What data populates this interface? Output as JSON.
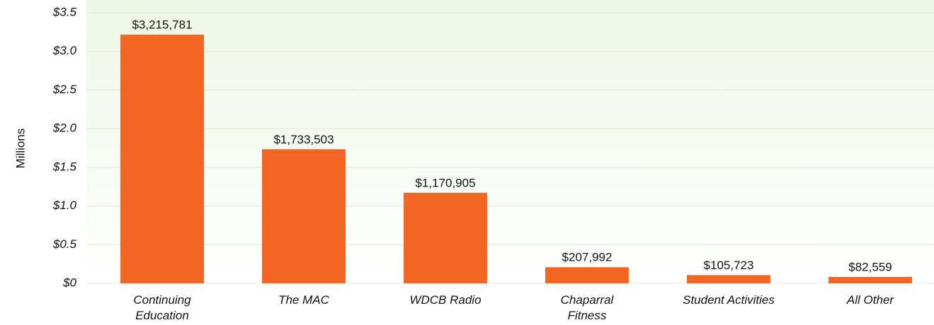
{
  "chart_data": {
    "type": "bar",
    "y_axis_label": "Millions",
    "categories": [
      "Continuing Education",
      "The MAC",
      "WDCB Radio",
      "Chaparral Fitness",
      "Student Activities",
      "All Other"
    ],
    "values": [
      3.215781,
      1.733503,
      1.170905,
      0.207992,
      0.105723,
      0.082559
    ],
    "value_labels": [
      "$3,215,781",
      "$1,733,503",
      "$1,170,905",
      "$207,992",
      "$105,723",
      "$82,559"
    ],
    "color": "#f26522",
    "ylim": [
      0,
      3.5
    ],
    "yticks": [
      {
        "value": 0,
        "label": "$0"
      },
      {
        "value": 0.5,
        "label": "$0.5"
      },
      {
        "value": 1,
        "label": "$1.0"
      },
      {
        "value": 1.5,
        "label": "$1.5"
      },
      {
        "value": 2,
        "label": "$2.0"
      },
      {
        "value": 2.5,
        "label": "$2.5"
      },
      {
        "value": 3,
        "label": "$3.0"
      },
      {
        "value": 3.5,
        "label": "$3.5"
      }
    ],
    "grid": true
  }
}
